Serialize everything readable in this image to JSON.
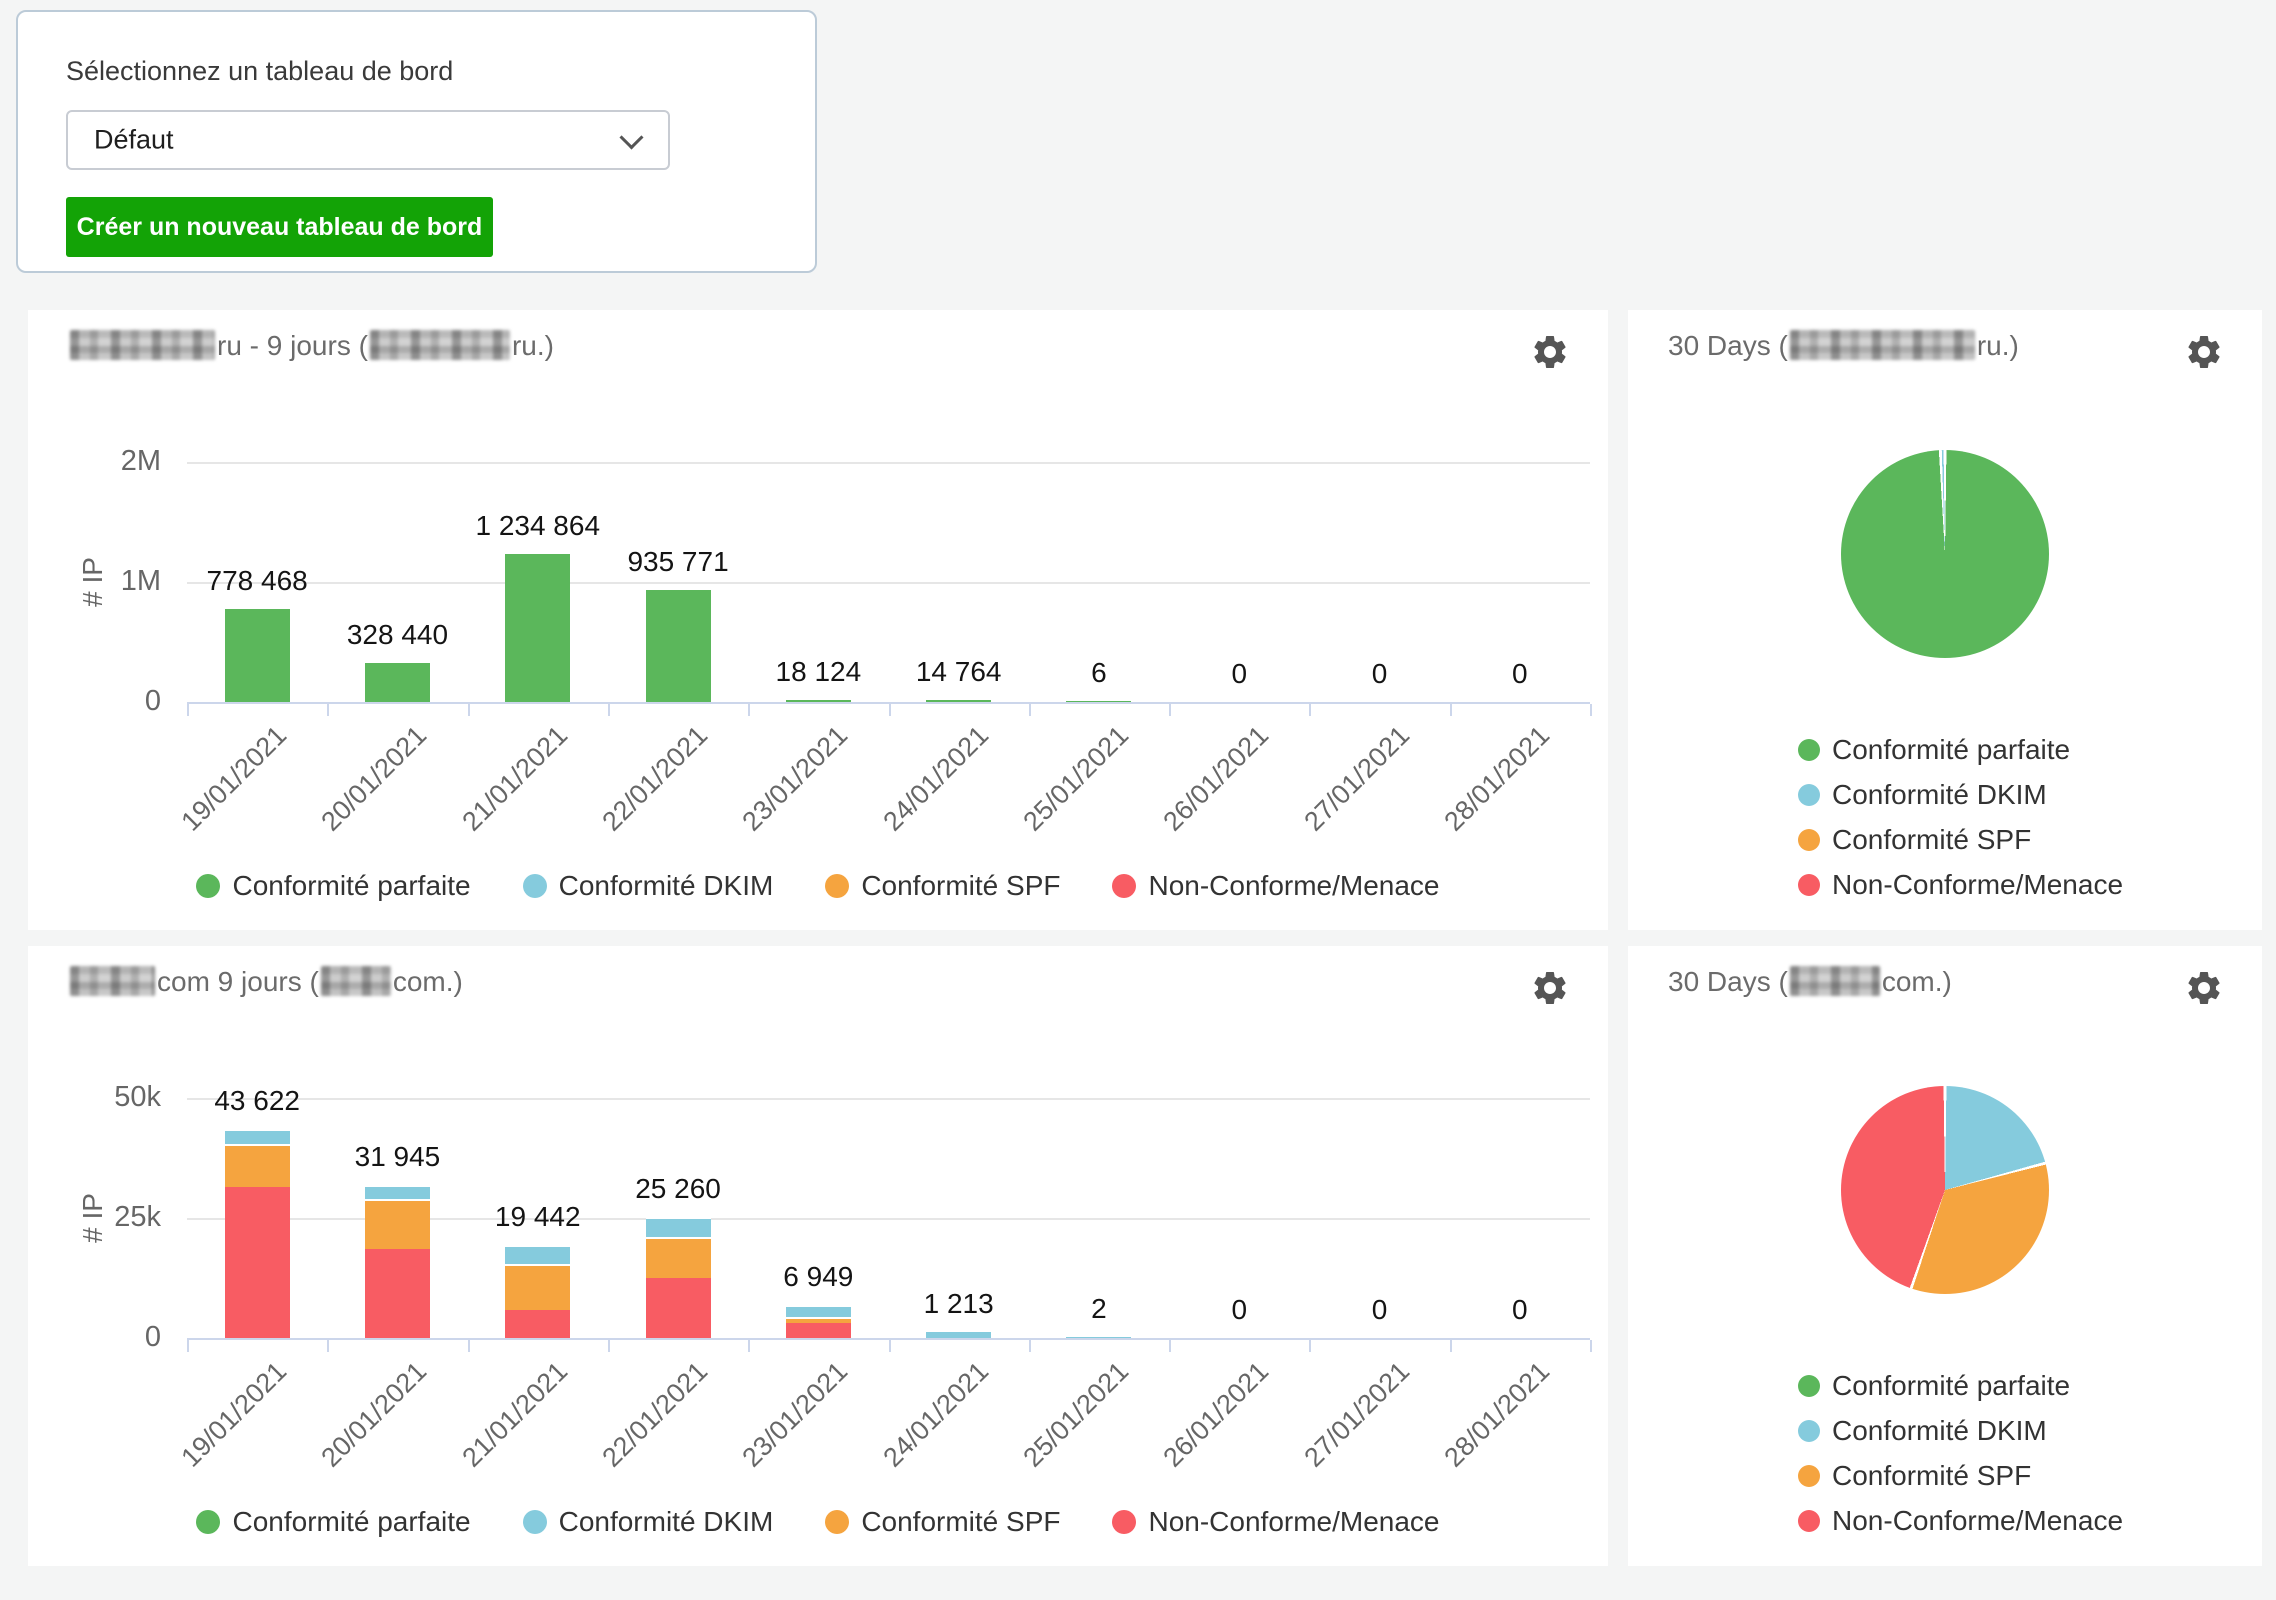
{
  "selector": {
    "label": "Sélectionnez un tableau de bord",
    "dropdown_value": "Défaut",
    "create_button": "Créer un nouveau tableau de bord"
  },
  "colors": {
    "green": "#5bb75b",
    "blue": "#85cbdd",
    "orange": "#f5a43f",
    "red": "#f85c63",
    "button_green": "#13a306",
    "axis": "#ccd6eb",
    "grid": "#e6e6e6",
    "gear_gray": "#555555"
  },
  "icons": {
    "settings": "gear-icon",
    "dropdown": "chevron-down-icon"
  },
  "legend_labels": [
    "Conformité parfaite",
    "Conformité DKIM",
    "Conformité SPF",
    "Non-Conforme/Menace"
  ],
  "chart_data": [
    {
      "type": "bar",
      "title_parts": [
        {
          "blur": 145
        },
        {
          "text": "ru - 9 jours ("
        },
        {
          "blur": 140
        },
        {
          "text": "ru.)"
        }
      ],
      "ylabel": "# IP",
      "ymax": 2000000,
      "yticks": [
        {
          "label": "2M",
          "value": 2000000
        },
        {
          "label": "1M",
          "value": 1000000
        },
        {
          "label": "0",
          "value": 0
        }
      ],
      "categories": [
        "19/01/2021",
        "20/01/2021",
        "21/01/2021",
        "22/01/2021",
        "23/01/2021",
        "24/01/2021",
        "25/01/2021",
        "26/01/2021",
        "27/01/2021",
        "28/01/2021"
      ],
      "series": [
        {
          "name": "Conformité parfaite",
          "color": "green",
          "values": [
            778468,
            328440,
            1234864,
            935771,
            18124,
            14764,
            6,
            0,
            0,
            0
          ]
        },
        {
          "name": "Conformité DKIM",
          "color": "blue",
          "values": [
            0,
            0,
            0,
            0,
            0,
            0,
            0,
            0,
            0,
            0
          ]
        },
        {
          "name": "Conformité SPF",
          "color": "orange",
          "values": [
            0,
            0,
            0,
            0,
            0,
            0,
            0,
            0,
            0,
            0
          ]
        },
        {
          "name": "Non-Conforme/Menace",
          "color": "red",
          "values": [
            0,
            0,
            0,
            0,
            0,
            0,
            0,
            0,
            0,
            0
          ]
        }
      ],
      "total_labels": [
        "778 468",
        "328 440",
        "1 234 864",
        "935 771",
        "18 124",
        "14 764",
        "6",
        "0",
        "0",
        "0"
      ],
      "legend_position": "bottom-horizontal",
      "grid": true
    },
    {
      "type": "pie",
      "title_parts": [
        {
          "text": "30 Days ("
        },
        {
          "blur": 185
        },
        {
          "text": "ru.)"
        }
      ],
      "slices": [
        {
          "name": "Conformité parfaite",
          "color": "green",
          "degrees": 357.4,
          "percent": 99.3
        },
        {
          "name": "Conformité DKIM",
          "color": "blue",
          "degrees": 2.6,
          "percent": 0.7
        },
        {
          "name": "Conformité SPF",
          "color": "orange",
          "degrees": 0,
          "percent": 0
        },
        {
          "name": "Non-Conforme/Menace",
          "color": "red",
          "degrees": 0,
          "percent": 0
        }
      ],
      "legend_position": "bottom-vertical"
    },
    {
      "type": "bar",
      "title_parts": [
        {
          "blur": 85
        },
        {
          "text": "com 9 jours ("
        },
        {
          "blur": 70
        },
        {
          "text": "com.)"
        }
      ],
      "ylabel": "# IP",
      "ymax": 50000,
      "yticks": [
        {
          "label": "50k",
          "value": 50000
        },
        {
          "label": "25k",
          "value": 25000
        },
        {
          "label": "0",
          "value": 0
        }
      ],
      "categories": [
        "19/01/2021",
        "20/01/2021",
        "21/01/2021",
        "22/01/2021",
        "23/01/2021",
        "24/01/2021",
        "25/01/2021",
        "26/01/2021",
        "27/01/2021",
        "28/01/2021"
      ],
      "series": [
        {
          "name": "Conformité parfaite",
          "color": "green",
          "values": [
            0,
            0,
            0,
            0,
            0,
            0,
            0,
            0,
            0,
            0
          ]
        },
        {
          "name": "Conformité DKIM",
          "color": "blue",
          "values": [
            3222,
            3045,
            4042,
            4300,
            2600,
            1213,
            2,
            0,
            0,
            0
          ]
        },
        {
          "name": "Conformité SPF",
          "color": "orange",
          "values": [
            8900,
            10400,
            9500,
            8500,
            1200,
            0,
            0,
            0,
            0,
            0
          ]
        },
        {
          "name": "Non-Conforme/Menace",
          "color": "red",
          "values": [
            31500,
            18500,
            5900,
            12460,
            3149,
            0,
            0,
            0,
            0,
            0
          ]
        }
      ],
      "total_labels": [
        "43 622",
        "31 945",
        "19 442",
        "25 260",
        "6 949",
        "1 213",
        "2",
        "0",
        "0",
        "0"
      ],
      "legend_position": "bottom-horizontal",
      "grid": true
    },
    {
      "type": "pie",
      "title_parts": [
        {
          "text": "30 Days ("
        },
        {
          "blur": 90
        },
        {
          "text": "com.)"
        }
      ],
      "slices": [
        {
          "name": "Conformité parfaite",
          "color": "green",
          "degrees": 0,
          "percent": 0
        },
        {
          "name": "Conformité DKIM",
          "color": "blue",
          "degrees": 75,
          "percent": 20.8
        },
        {
          "name": "Conformité SPF",
          "color": "orange",
          "degrees": 124,
          "percent": 34.5
        },
        {
          "name": "Non-Conforme/Menace",
          "color": "red",
          "degrees": 161,
          "percent": 44.7
        }
      ],
      "legend_position": "bottom-vertical"
    }
  ]
}
